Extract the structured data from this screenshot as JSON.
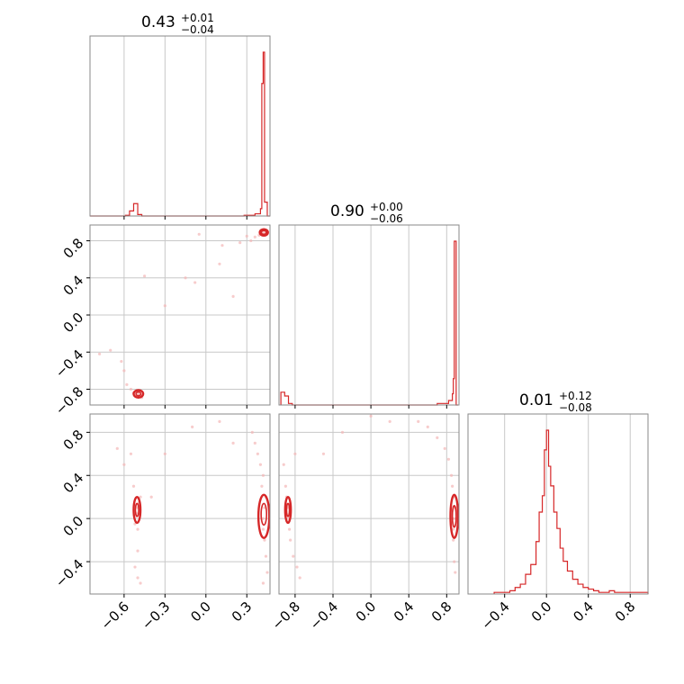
{
  "colors": {
    "series": "#d62728",
    "scatter_fill": "#f4b6b6",
    "grid": "#c8c8c8",
    "frame": "#888888",
    "tick": "#000000"
  },
  "chart_data": [
    {
      "type": "histogram",
      "panel": "diag-0",
      "title": {
        "value": "0.43",
        "sup": "+0.01",
        "sub": "−0.04"
      },
      "xlim": [
        -0.85,
        0.47
      ],
      "grid": true,
      "bin_edges": [
        -0.85,
        -0.59,
        -0.56,
        -0.53,
        -0.5,
        -0.47,
        -0.44,
        0.28,
        0.36,
        0.4,
        0.41,
        0.42,
        0.43,
        0.45,
        0.46,
        0.47
      ],
      "counts": [
        0,
        1,
        7,
        17,
        2,
        0,
        0,
        1,
        3,
        10,
        182,
        225,
        19,
        0,
        0
      ]
    },
    {
      "type": "histogram",
      "panel": "diag-1",
      "title": {
        "value": "0.90",
        "sup": "+0.00",
        "sub": "−0.06"
      },
      "xlim": [
        -0.97,
        0.93
      ],
      "grid": true,
      "bin_edges": [
        -0.95,
        -0.91,
        -0.87,
        -0.83,
        -0.79,
        0.7,
        0.82,
        0.86,
        0.87,
        0.88,
        0.9,
        0.92
      ],
      "counts": [
        17,
        12,
        2,
        0,
        0,
        2,
        6,
        15,
        35,
        218,
        0
      ]
    },
    {
      "type": "histogram",
      "panel": "diag-2",
      "title": {
        "value": "0.01",
        "sup": "+0.12",
        "sub": "−0.08"
      },
      "xlim": [
        -0.75,
        0.97
      ],
      "grid": true,
      "bin_edges": [
        -0.5,
        -0.4,
        -0.35,
        -0.3,
        -0.25,
        -0.2,
        -0.15,
        -0.1,
        -0.07,
        -0.04,
        -0.02,
        0.0,
        0.02,
        0.04,
        0.07,
        0.1,
        0.13,
        0.16,
        0.2,
        0.25,
        0.3,
        0.35,
        0.4,
        0.45,
        0.5,
        0.6,
        0.65,
        0.8,
        0.9,
        0.97
      ],
      "counts": [
        1,
        1,
        2,
        4,
        6,
        12,
        18,
        32,
        50,
        60,
        88,
        100,
        78,
        66,
        50,
        40,
        28,
        20,
        14,
        9,
        6,
        4,
        3,
        2,
        1,
        2,
        1,
        1,
        1
      ]
    },
    {
      "type": "scatter",
      "panel": "row1-col0",
      "xlim": [
        -0.85,
        0.47
      ],
      "ylim": [
        -0.97,
        0.97
      ],
      "grid": true,
      "points": [
        [
          -0.5,
          -0.85
        ],
        [
          -0.49,
          -0.87
        ],
        [
          -0.52,
          -0.83
        ],
        [
          -0.48,
          -0.86
        ],
        [
          -0.5,
          -0.82
        ],
        [
          -0.51,
          -0.88
        ],
        [
          -0.47,
          -0.89
        ],
        [
          -0.53,
          -0.84
        ],
        [
          -0.55,
          -0.8
        ],
        [
          -0.58,
          -0.75
        ],
        [
          -0.62,
          -0.5
        ],
        [
          -0.7,
          -0.38
        ],
        [
          -0.78,
          -0.42
        ],
        [
          -0.45,
          0.42
        ],
        [
          -0.15,
          0.4
        ],
        [
          -0.08,
          0.35
        ],
        [
          0.1,
          0.55
        ],
        [
          0.25,
          0.78
        ],
        [
          0.3,
          0.85
        ],
        [
          -0.05,
          0.87
        ],
        [
          0.4,
          0.88
        ],
        [
          0.42,
          0.9
        ],
        [
          0.43,
          0.88
        ],
        [
          0.41,
          0.87
        ],
        [
          0.44,
          0.89
        ],
        [
          0.39,
          0.86
        ],
        [
          0.36,
          0.84
        ],
        [
          0.33,
          0.8
        ],
        [
          0.2,
          0.2
        ],
        [
          -0.3,
          0.1
        ],
        [
          0.12,
          0.75
        ],
        [
          -0.6,
          -0.6
        ]
      ],
      "contours": [
        {
          "cx": 0.425,
          "cy": 0.89,
          "rx": 0.03,
          "ry": 0.035,
          "level": 1
        },
        {
          "cx": 0.425,
          "cy": 0.89,
          "rx": 0.018,
          "ry": 0.02,
          "level": 2
        },
        {
          "cx": -0.495,
          "cy": -0.85,
          "rx": 0.035,
          "ry": 0.04,
          "level": 1
        },
        {
          "cx": -0.495,
          "cy": -0.85,
          "rx": 0.018,
          "ry": 0.02,
          "level": 2
        }
      ],
      "yticks": [
        "0.8",
        "0.4",
        "0.0",
        "−0.4",
        "−0.8"
      ],
      "ytick_values": [
        0.8,
        0.4,
        0.0,
        -0.4,
        -0.8
      ]
    },
    {
      "type": "scatter",
      "panel": "row2-col0",
      "xlim": [
        -0.85,
        0.47
      ],
      "ylim": [
        -0.7,
        0.97
      ],
      "grid": true,
      "points": [
        [
          -0.5,
          0.1
        ],
        [
          -0.51,
          0.05
        ],
        [
          -0.49,
          0.15
        ],
        [
          -0.52,
          -0.05
        ],
        [
          -0.5,
          -0.1
        ],
        [
          -0.48,
          0.2
        ],
        [
          -0.53,
          0.3
        ],
        [
          -0.5,
          -0.3
        ],
        [
          -0.52,
          -0.45
        ],
        [
          -0.5,
          -0.55
        ],
        [
          -0.55,
          0.6
        ],
        [
          -0.6,
          0.5
        ],
        [
          -0.65,
          0.65
        ],
        [
          -0.48,
          -0.6
        ],
        [
          0.42,
          0.0
        ],
        [
          0.43,
          0.1
        ],
        [
          0.42,
          -0.1
        ],
        [
          0.44,
          0.2
        ],
        [
          0.41,
          0.3
        ],
        [
          0.43,
          -0.2
        ],
        [
          0.42,
          0.4
        ],
        [
          0.4,
          0.5
        ],
        [
          0.38,
          0.6
        ],
        [
          0.36,
          0.7
        ],
        [
          0.34,
          0.8
        ],
        [
          0.44,
          -0.35
        ],
        [
          0.45,
          -0.5
        ],
        [
          0.42,
          -0.6
        ],
        [
          0.1,
          0.9
        ],
        [
          -0.1,
          0.85
        ],
        [
          -0.3,
          0.6
        ],
        [
          -0.4,
          0.2
        ],
        [
          0.2,
          0.7
        ]
      ],
      "contours": [
        {
          "cx": -0.505,
          "cy": 0.08,
          "rx": 0.025,
          "ry": 0.12,
          "level": 1
        },
        {
          "cx": -0.505,
          "cy": 0.08,
          "rx": 0.012,
          "ry": 0.06,
          "level": 2
        },
        {
          "cx": 0.425,
          "cy": 0.02,
          "rx": 0.04,
          "ry": 0.2,
          "level": 1
        },
        {
          "cx": 0.425,
          "cy": 0.04,
          "rx": 0.02,
          "ry": 0.1,
          "level": 2
        }
      ],
      "yticks": [
        "0.8",
        "0.4",
        "0.0",
        "−0.4"
      ],
      "ytick_values": [
        0.8,
        0.4,
        0.0,
        -0.4
      ],
      "xticks": [
        "−0.6",
        "−0.3",
        "0.0",
        "0.3"
      ],
      "xtick_values": [
        -0.6,
        -0.3,
        0.0,
        0.3
      ]
    },
    {
      "type": "scatter",
      "panel": "row2-col1",
      "xlim": [
        -0.97,
        0.93
      ],
      "ylim": [
        -0.7,
        0.97
      ],
      "grid": true,
      "points": [
        [
          -0.88,
          0.1
        ],
        [
          -0.87,
          0.0
        ],
        [
          -0.89,
          0.2
        ],
        [
          -0.86,
          -0.1
        ],
        [
          -0.9,
          0.3
        ],
        [
          -0.85,
          -0.2
        ],
        [
          -0.82,
          -0.35
        ],
        [
          -0.78,
          -0.45
        ],
        [
          -0.75,
          -0.55
        ],
        [
          -0.92,
          0.5
        ],
        [
          -0.8,
          0.6
        ],
        [
          0.88,
          0.0
        ],
        [
          0.89,
          0.1
        ],
        [
          0.87,
          -0.1
        ],
        [
          0.88,
          0.2
        ],
        [
          0.86,
          0.3
        ],
        [
          0.87,
          -0.2
        ],
        [
          0.85,
          0.4
        ],
        [
          0.82,
          0.55
        ],
        [
          0.78,
          0.65
        ],
        [
          0.7,
          0.75
        ],
        [
          0.6,
          0.85
        ],
        [
          0.5,
          0.9
        ],
        [
          0.2,
          0.9
        ],
        [
          -0.3,
          0.8
        ],
        [
          -0.5,
          0.6
        ],
        [
          0.88,
          -0.4
        ],
        [
          0.89,
          -0.5
        ],
        [
          0.0,
          0.95
        ]
      ],
      "contours": [
        {
          "cx": -0.875,
          "cy": 0.08,
          "rx": 0.03,
          "ry": 0.12,
          "level": 1
        },
        {
          "cx": -0.875,
          "cy": 0.08,
          "rx": 0.015,
          "ry": 0.06,
          "level": 2
        },
        {
          "cx": 0.88,
          "cy": 0.02,
          "rx": 0.04,
          "ry": 0.2,
          "level": 1
        },
        {
          "cx": 0.88,
          "cy": 0.02,
          "rx": 0.02,
          "ry": 0.1,
          "level": 2
        }
      ],
      "xticks": [
        "−0.8",
        "−0.4",
        "0.0",
        "0.4",
        "0.8"
      ],
      "xtick_values": [
        -0.8,
        -0.4,
        0.0,
        0.4,
        0.8
      ]
    },
    {
      "type": "axis",
      "panel": "row2-col2",
      "xticks": [
        "−0.4",
        "0.0",
        "0.4",
        "0.8"
      ],
      "xtick_values": [
        -0.4,
        0.0,
        0.4,
        0.8
      ]
    }
  ]
}
